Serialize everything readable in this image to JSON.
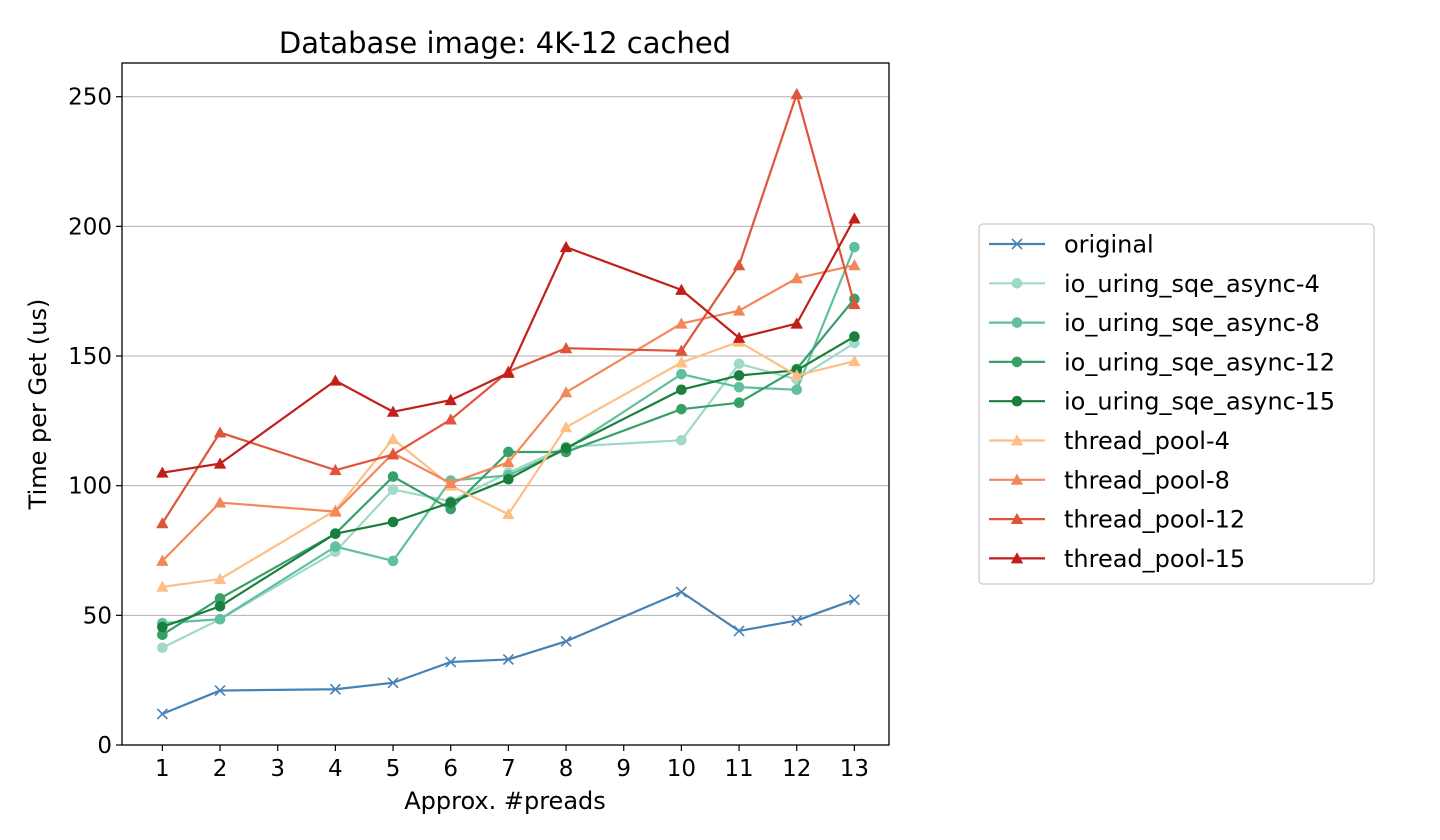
{
  "chart_data": {
    "type": "line",
    "title": "Database image: 4K-12 cached",
    "xlabel": "Approx. #preads",
    "ylabel": "Time per Get (us)",
    "x_categories": [
      "1",
      "2",
      "3",
      "4",
      "5",
      "6",
      "7",
      "8",
      "9",
      "10",
      "11",
      "12",
      "13"
    ],
    "x": [
      1,
      2,
      4,
      5,
      6,
      7,
      8,
      10,
      11,
      12,
      13
    ],
    "xlim": [
      0.3,
      13.6
    ],
    "ylim": [
      0,
      263
    ],
    "yticks": [
      0,
      50,
      100,
      150,
      200,
      250
    ],
    "grid": "y",
    "legend_position": "outside-right",
    "series": [
      {
        "name": "original",
        "color": "#4682b4",
        "marker": "x",
        "values": [
          12,
          21,
          21.5,
          24,
          32,
          33,
          40,
          59,
          44,
          48,
          56
        ]
      },
      {
        "name": "io_uring_sqe_async-4",
        "color": "#9fd9c7",
        "marker": "circle",
        "values": [
          37.5,
          48.5,
          74.5,
          98.5,
          94,
          105,
          115,
          117.5,
          147,
          141,
          155
        ]
      },
      {
        "name": "io_uring_sqe_async-8",
        "color": "#5fbf9e",
        "marker": "circle",
        "values": [
          47,
          48.5,
          76.5,
          71,
          102,
          104,
          114,
          143,
          138,
          137,
          192
        ]
      },
      {
        "name": "io_uring_sqe_async-12",
        "color": "#37a06a",
        "marker": "circle",
        "values": [
          42.5,
          56.5,
          81.5,
          103.5,
          91,
          113,
          113,
          129.5,
          132,
          145,
          172
        ]
      },
      {
        "name": "io_uring_sqe_async-15",
        "color": "#1a7f3c",
        "marker": "circle",
        "values": [
          45.5,
          53.5,
          81.5,
          86,
          93.5,
          102.5,
          114.5,
          137,
          142.5,
          144.5,
          157.5
        ]
      },
      {
        "name": "thread_pool-4",
        "color": "#fdbf85",
        "marker": "triangle",
        "values": [
          61,
          64,
          90.5,
          118,
          100,
          89,
          122.5,
          147.5,
          155.5,
          142.5,
          148
        ]
      },
      {
        "name": "thread_pool-8",
        "color": "#f4875a",
        "marker": "triangle",
        "values": [
          71,
          93.5,
          90,
          112.5,
          101,
          109,
          136,
          162.5,
          167.5,
          180,
          185
        ]
      },
      {
        "name": "thread_pool-12",
        "color": "#e05439",
        "marker": "triangle",
        "values": [
          85.5,
          120.5,
          106,
          112,
          125.5,
          144,
          153,
          152,
          185,
          251,
          170
        ]
      },
      {
        "name": "thread_pool-15",
        "color": "#c21f1a",
        "marker": "triangle",
        "values": [
          105,
          108.5,
          140.5,
          128.5,
          133,
          143.5,
          192,
          175.5,
          157,
          162.5,
          203
        ]
      }
    ]
  }
}
